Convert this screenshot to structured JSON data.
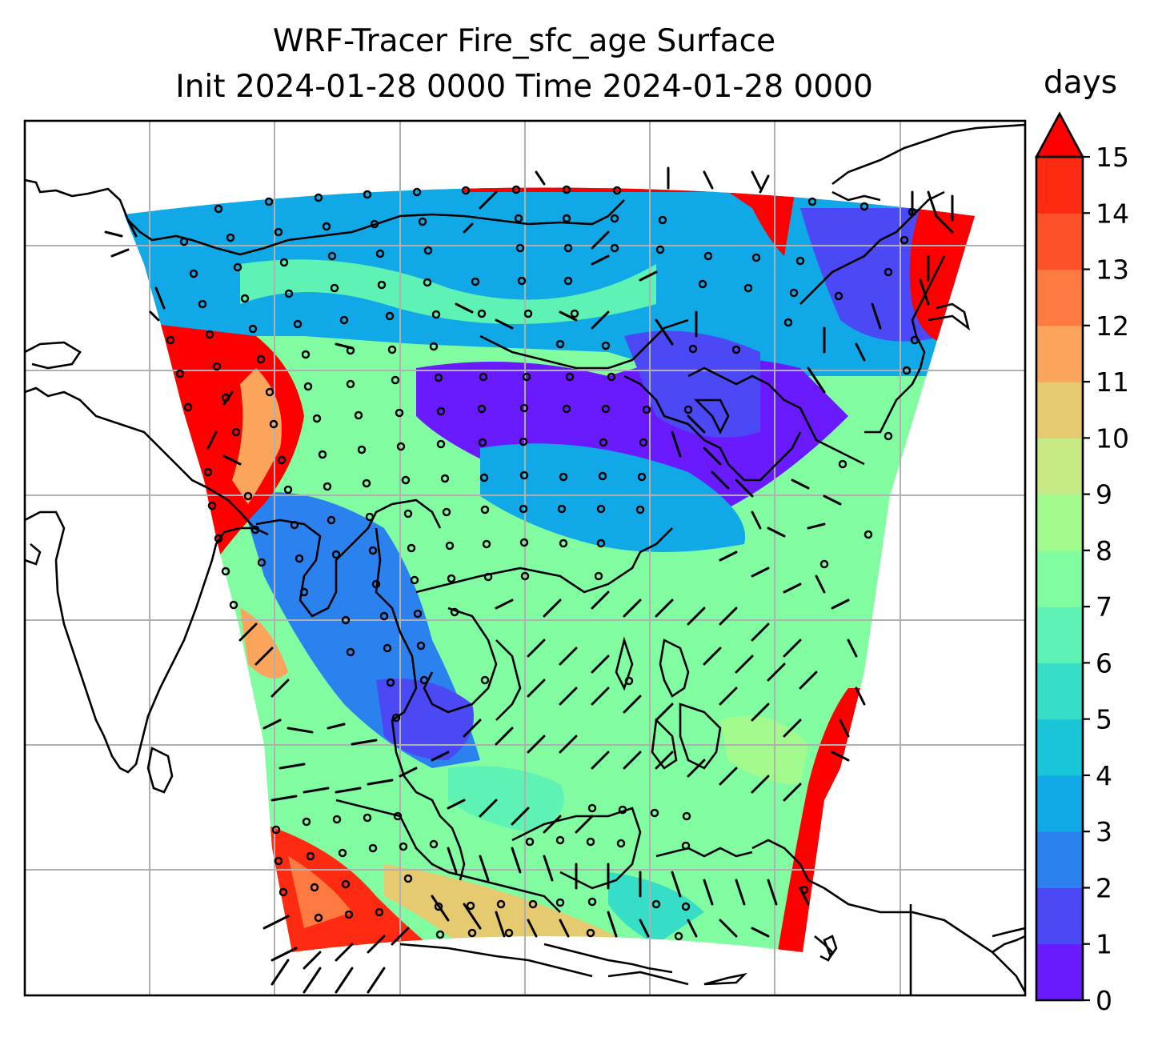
{
  "title": {
    "line1": "WRF-Tracer Fire_sfc_age Surface",
    "line2": "Init 2024-01-28 0000 Time 2024-01-28 0000"
  },
  "colorbar": {
    "unit_label": "days",
    "ticks": [
      "0",
      "1",
      "2",
      "3",
      "4",
      "5",
      "6",
      "7",
      "8",
      "9",
      "10",
      "11",
      "12",
      "13",
      "14",
      "15"
    ],
    "extend": "max",
    "colors": [
      "#6a1aff",
      "#4a49f5",
      "#2b82ef",
      "#10a8e6",
      "#1bc5d8",
      "#36dec8",
      "#5ef3b4",
      "#82fca0",
      "#a3fb8e",
      "#c8ea84",
      "#e5ca70",
      "#fba55c",
      "#ff7a40",
      "#ff5128",
      "#ff2a12",
      "#ff0000"
    ]
  },
  "chart_data": {
    "type": "heatmap",
    "variable": "Fire_sfc_age",
    "level": "Surface",
    "colorbar_range": [
      0,
      15
    ],
    "colorbar_units": "days",
    "gridlines": true,
    "overlays": [
      "coastlines",
      "wind barbs"
    ]
  }
}
